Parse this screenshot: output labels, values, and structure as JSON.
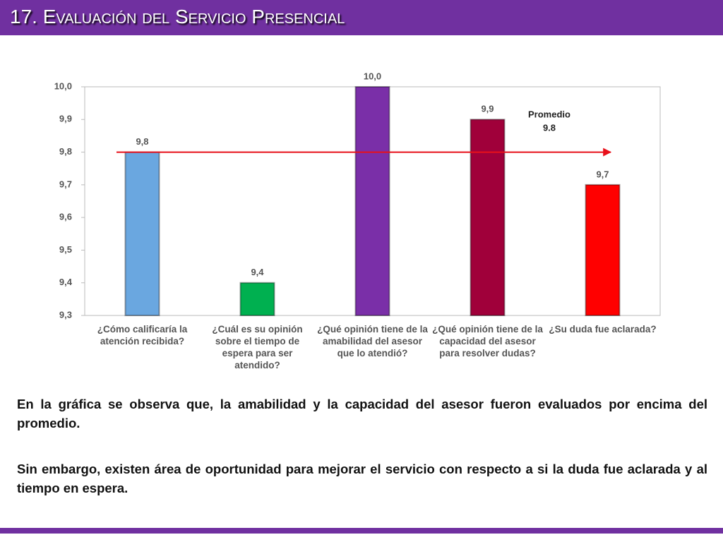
{
  "header": {
    "title": "17. Evaluación del Servicio Presencial"
  },
  "chart_data": {
    "type": "bar",
    "categories": [
      "¿Cómo calificaría la atención recibida?",
      "¿Cuál es su opinión sobre el tiempo de espera para ser atendido?",
      "¿Qué opinión tiene de la amabilidad del asesor que lo atendió?",
      "¿Qué opinión tiene de la capacidad del asesor para resolver dudas?",
      "¿Su duda fue aclarada?"
    ],
    "values": [
      9.8,
      9.4,
      10.0,
      9.9,
      9.7
    ],
    "value_labels": [
      "9,8",
      "9,4",
      "10,0",
      "9,9",
      "9,7"
    ],
    "colors": [
      "#6aa7e0",
      "#00b050",
      "#7a2fa8",
      "#a0003a",
      "#ff0000"
    ],
    "ylim": [
      9.3,
      10.0
    ],
    "yticks": [
      {
        "value": 9.3,
        "label": "9,3"
      },
      {
        "value": 9.4,
        "label": "9,4"
      },
      {
        "value": 9.5,
        "label": "9,5"
      },
      {
        "value": 9.6,
        "label": "9,6"
      },
      {
        "value": 9.7,
        "label": "9,7"
      },
      {
        "value": 9.8,
        "label": "9,8"
      },
      {
        "value": 9.9,
        "label": "9,9"
      },
      {
        "value": 10.0,
        "label": "10,0"
      }
    ],
    "average": {
      "label": "Promedio",
      "value": 9.8,
      "color": "#e8101a"
    }
  },
  "text": {
    "paragraphs": [
      "En la gráfica se observa que, la amabilidad y la capacidad del asesor fueron evaluados por encima del promedio.",
      "Sin embargo, existen área de oportunidad para mejorar el servicio con respecto a si la duda fue aclarada y al tiempo en espera."
    ]
  }
}
